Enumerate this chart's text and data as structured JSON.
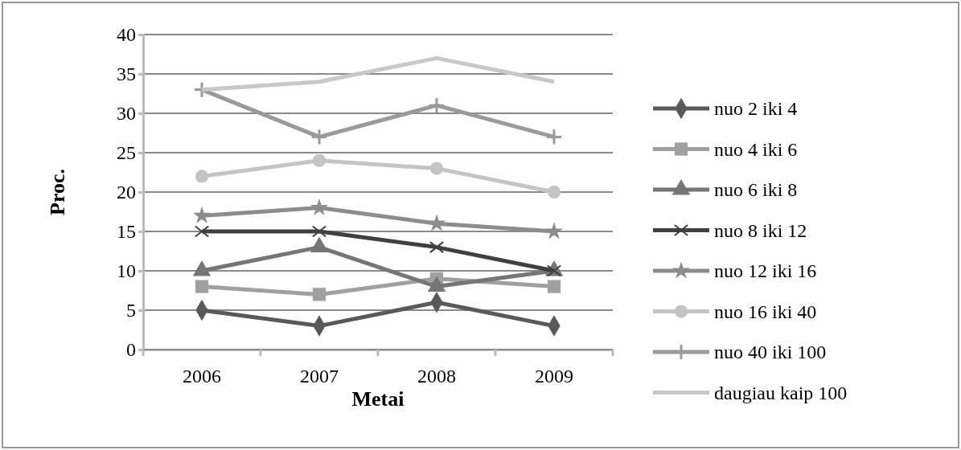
{
  "chart_data": {
    "type": "line",
    "xlabel": "Metai",
    "ylabel": "Proc.",
    "categories": [
      "2006",
      "2007",
      "2008",
      "2009"
    ],
    "ylim": [
      0,
      40
    ],
    "yticks": [
      0,
      5,
      10,
      15,
      20,
      25,
      30,
      35,
      40
    ],
    "grid": "y",
    "legend": "right",
    "series": [
      {
        "name": "nuo 2 iki 4",
        "color": "#595959",
        "marker": "diamond",
        "values": [
          5,
          3,
          6,
          3
        ]
      },
      {
        "name": "nuo 4 iki 6",
        "color": "#a0a0a0",
        "marker": "square",
        "values": [
          8,
          7,
          9,
          8
        ]
      },
      {
        "name": "nuo 6 iki 8",
        "color": "#767676",
        "marker": "triangle",
        "values": [
          10,
          13,
          8,
          10
        ]
      },
      {
        "name": "nuo 8 iki 12",
        "color": "#404040",
        "marker": "x",
        "values": [
          15,
          15,
          13,
          10
        ]
      },
      {
        "name": "nuo 12 iki 16",
        "color": "#8c8c8c",
        "marker": "star",
        "values": [
          17,
          18,
          16,
          15
        ]
      },
      {
        "name": "nuo 16 iki 40",
        "color": "#c4c4c4",
        "marker": "circle",
        "values": [
          22,
          24,
          23,
          20
        ]
      },
      {
        "name": "nuo 40 iki 100",
        "color": "#9a9a9a",
        "marker": "cross",
        "values": [
          33,
          27,
          31,
          27
        ]
      },
      {
        "name": "daugiau kaip 100",
        "color": "#c8c8c8",
        "marker": "none",
        "values": [
          33,
          34,
          37,
          34
        ]
      }
    ]
  }
}
